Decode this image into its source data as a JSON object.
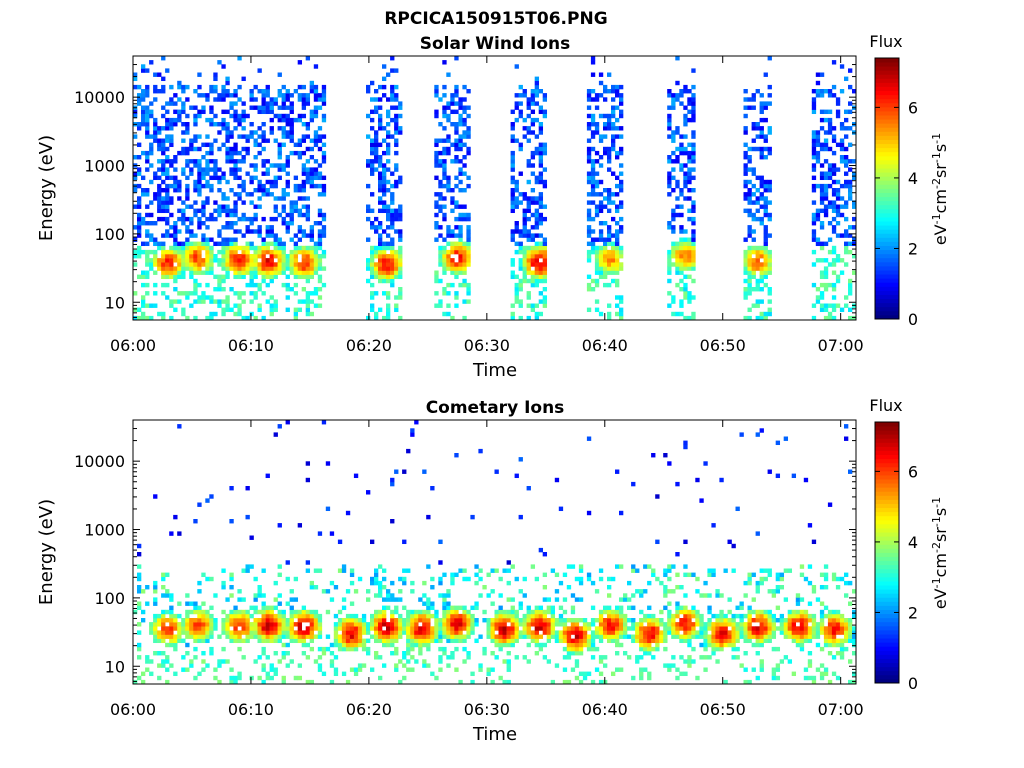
{
  "figure": {
    "title": "RPCICA150915T06.PNG"
  },
  "colorbar": {
    "title": "Flux",
    "label_base": "eV",
    "label_full": "eV-1cm-2sr-1s-1",
    "ticks": [
      0,
      2,
      4,
      6
    ],
    "range": [
      0,
      7.4
    ],
    "colormap": "jet"
  },
  "chart_data": [
    {
      "type": "heatmap",
      "title": "Solar Wind Ions",
      "xlabel": "Time",
      "ylabel": "Energy (eV)",
      "x_ticks": [
        "06:00",
        "06:10",
        "06:20",
        "06:30",
        "06:40",
        "06:50",
        "07:00"
      ],
      "x_range_minutes": [
        0,
        61.3
      ],
      "y_scale": "log",
      "y_ticks": [
        10,
        100,
        1000,
        10000
      ],
      "y_tick_labels": [
        "10",
        "100",
        "1000",
        "10000"
      ],
      "y_range": [
        5.5,
        40000
      ],
      "data_gaps_minutes": [
        [
          16.3,
          19.7
        ],
        [
          22.9,
          25.6
        ],
        [
          28.7,
          32.0
        ],
        [
          35.0,
          38.6
        ],
        [
          41.5,
          45.2
        ],
        [
          47.7,
          51.6
        ],
        [
          54.0,
          57.5
        ]
      ],
      "hot_spots": [
        {
          "t": 3.0,
          "e": 38,
          "f": 6.2
        },
        {
          "t": 5.5,
          "e": 45,
          "f": 6.0
        },
        {
          "t": 9.0,
          "e": 42,
          "f": 6.4
        },
        {
          "t": 11.5,
          "e": 40,
          "f": 6.6
        },
        {
          "t": 14.5,
          "e": 38,
          "f": 6.2
        },
        {
          "t": 21.5,
          "e": 36,
          "f": 6.4
        },
        {
          "t": 27.5,
          "e": 45,
          "f": 6.4
        },
        {
          "t": 34.5,
          "e": 38,
          "f": 6.8
        },
        {
          "t": 40.5,
          "e": 42,
          "f": 5.4
        },
        {
          "t": 46.8,
          "e": 48,
          "f": 5.6
        },
        {
          "t": 53.0,
          "e": 40,
          "f": 5.8
        }
      ]
    },
    {
      "type": "heatmap",
      "title": "Cometary Ions",
      "xlabel": "Time",
      "ylabel": "Energy (eV)",
      "x_ticks": [
        "06:00",
        "06:10",
        "06:20",
        "06:30",
        "06:40",
        "06:50",
        "07:00"
      ],
      "x_range_minutes": [
        0,
        61.3
      ],
      "y_scale": "log",
      "y_ticks": [
        10,
        100,
        1000,
        10000
      ],
      "y_tick_labels": [
        "10",
        "100",
        "1000",
        "10000"
      ],
      "y_range": [
        5.5,
        40000
      ],
      "data_gaps_minutes": [],
      "hot_spots": [
        {
          "t": 3.0,
          "e": 35,
          "f": 6.2
        },
        {
          "t": 5.5,
          "e": 40,
          "f": 6.0
        },
        {
          "t": 9.0,
          "e": 38,
          "f": 6.2
        },
        {
          "t": 11.5,
          "e": 40,
          "f": 6.8
        },
        {
          "t": 14.5,
          "e": 38,
          "f": 6.8
        },
        {
          "t": 18.5,
          "e": 30,
          "f": 6.6
        },
        {
          "t": 21.5,
          "e": 38,
          "f": 6.8
        },
        {
          "t": 24.5,
          "e": 36,
          "f": 6.8
        },
        {
          "t": 27.5,
          "e": 42,
          "f": 6.6
        },
        {
          "t": 31.5,
          "e": 35,
          "f": 6.8
        },
        {
          "t": 34.5,
          "e": 38,
          "f": 6.8
        },
        {
          "t": 37.5,
          "e": 28,
          "f": 6.8
        },
        {
          "t": 40.5,
          "e": 40,
          "f": 6.4
        },
        {
          "t": 43.8,
          "e": 30,
          "f": 6.6
        },
        {
          "t": 46.8,
          "e": 42,
          "f": 6.4
        },
        {
          "t": 50.0,
          "e": 30,
          "f": 6.6
        },
        {
          "t": 53.0,
          "e": 38,
          "f": 6.6
        },
        {
          "t": 56.5,
          "e": 38,
          "f": 6.6
        },
        {
          "t": 59.5,
          "e": 35,
          "f": 6.4
        }
      ]
    }
  ]
}
